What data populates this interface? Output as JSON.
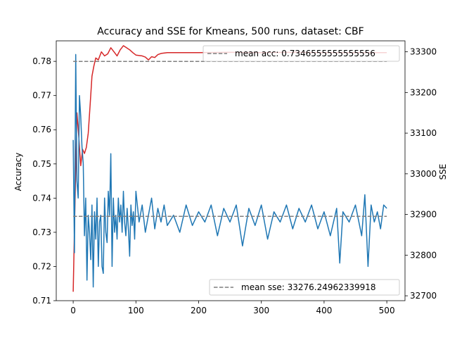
{
  "chart_data": {
    "type": "line",
    "title": "Accuracy and SSE for Kmeans, 500 runs, dataset: CBF",
    "xlabel": "",
    "ylabel_left": "Accuracy",
    "ylabel_right": "SSE",
    "xlim": [
      -27,
      529
    ],
    "ylim_left": [
      0.71,
      0.786
    ],
    "ylim_right": [
      32688,
      33327
    ],
    "x_ticks": [
      0,
      100,
      200,
      300,
      400,
      500
    ],
    "y_ticks_left": [
      0.71,
      0.72,
      0.73,
      0.74,
      0.75,
      0.76,
      0.77,
      0.78
    ],
    "y_ticks_right": [
      32700,
      32800,
      32900,
      33000,
      33100,
      33200,
      33300
    ],
    "grid": false,
    "series": [
      {
        "axis": "right",
        "color": "#d62728",
        "points": [
          [
            0,
            32710
          ],
          [
            3,
            32940
          ],
          [
            6,
            33150
          ],
          [
            9,
            33090
          ],
          [
            12,
            33020
          ],
          [
            15,
            33060
          ],
          [
            18,
            33050
          ],
          [
            21,
            33065
          ],
          [
            24,
            33100
          ],
          [
            27,
            33170
          ],
          [
            30,
            33240
          ],
          [
            33,
            33265
          ],
          [
            36,
            33285
          ],
          [
            40,
            33280
          ],
          [
            45,
            33300
          ],
          [
            50,
            33290
          ],
          [
            55,
            33295
          ],
          [
            60,
            33310
          ],
          [
            65,
            33300
          ],
          [
            70,
            33290
          ],
          [
            75,
            33305
          ],
          [
            80,
            33315
          ],
          [
            85,
            33310
          ],
          [
            90,
            33305
          ],
          [
            95,
            33298
          ],
          [
            100,
            33292
          ],
          [
            110,
            33290
          ],
          [
            115,
            33287
          ],
          [
            120,
            33280
          ],
          [
            125,
            33288
          ],
          [
            130,
            33286
          ],
          [
            135,
            33293
          ],
          [
            140,
            33296
          ],
          [
            150,
            33298
          ],
          [
            200,
            33298
          ],
          [
            250,
            33299
          ],
          [
            300,
            33298
          ],
          [
            350,
            33299
          ],
          [
            400,
            33298
          ],
          [
            450,
            33298
          ],
          [
            500,
            33298
          ]
        ]
      },
      {
        "axis": "left",
        "color": "#1f77b4",
        "points": [
          [
            0,
            0.757
          ],
          [
            2,
            0.724
          ],
          [
            4,
            0.782
          ],
          [
            6,
            0.745
          ],
          [
            8,
            0.74
          ],
          [
            10,
            0.77
          ],
          [
            12,
            0.764
          ],
          [
            14,
            0.755
          ],
          [
            16,
            0.75
          ],
          [
            18,
            0.729
          ],
          [
            20,
            0.74
          ],
          [
            22,
            0.716
          ],
          [
            24,
            0.735
          ],
          [
            26,
            0.73
          ],
          [
            28,
            0.722
          ],
          [
            30,
            0.738
          ],
          [
            32,
            0.714
          ],
          [
            34,
            0.736
          ],
          [
            36,
            0.728
          ],
          [
            38,
            0.74
          ],
          [
            40,
            0.72
          ],
          [
            42,
            0.733
          ],
          [
            44,
            0.735
          ],
          [
            46,
            0.72
          ],
          [
            48,
            0.718
          ],
          [
            50,
            0.74
          ],
          [
            52,
            0.73
          ],
          [
            54,
            0.727
          ],
          [
            56,
            0.742
          ],
          [
            58,
            0.735
          ],
          [
            60,
            0.753
          ],
          [
            62,
            0.72
          ],
          [
            64,
            0.74
          ],
          [
            66,
            0.73
          ],
          [
            68,
            0.735
          ],
          [
            70,
            0.728
          ],
          [
            72,
            0.74
          ],
          [
            74,
            0.733
          ],
          [
            76,
            0.738
          ],
          [
            78,
            0.73
          ],
          [
            80,
            0.742
          ],
          [
            82,
            0.733
          ],
          [
            84,
            0.729
          ],
          [
            86,
            0.737
          ],
          [
            88,
            0.731
          ],
          [
            90,
            0.723
          ],
          [
            92,
            0.738
          ],
          [
            94,
            0.732
          ],
          [
            96,
            0.736
          ],
          [
            98,
            0.728
          ],
          [
            100,
            0.742
          ],
          [
            105,
            0.733
          ],
          [
            110,
            0.738
          ],
          [
            115,
            0.73
          ],
          [
            120,
            0.735
          ],
          [
            125,
            0.74
          ],
          [
            130,
            0.731
          ],
          [
            135,
            0.737
          ],
          [
            140,
            0.733
          ],
          [
            145,
            0.738
          ],
          [
            150,
            0.732
          ],
          [
            160,
            0.735
          ],
          [
            170,
            0.73
          ],
          [
            180,
            0.738
          ],
          [
            190,
            0.732
          ],
          [
            200,
            0.736
          ],
          [
            210,
            0.733
          ],
          [
            220,
            0.738
          ],
          [
            230,
            0.729
          ],
          [
            240,
            0.737
          ],
          [
            250,
            0.733
          ],
          [
            260,
            0.738
          ],
          [
            270,
            0.726
          ],
          [
            280,
            0.737
          ],
          [
            290,
            0.732
          ],
          [
            300,
            0.738
          ],
          [
            310,
            0.728
          ],
          [
            320,
            0.736
          ],
          [
            330,
            0.733
          ],
          [
            340,
            0.738
          ],
          [
            350,
            0.731
          ],
          [
            360,
            0.737
          ],
          [
            370,
            0.733
          ],
          [
            380,
            0.738
          ],
          [
            390,
            0.731
          ],
          [
            400,
            0.736
          ],
          [
            410,
            0.729
          ],
          [
            420,
            0.737
          ],
          [
            425,
            0.721
          ],
          [
            430,
            0.736
          ],
          [
            440,
            0.733
          ],
          [
            450,
            0.738
          ],
          [
            460,
            0.729
          ],
          [
            465,
            0.741
          ],
          [
            470,
            0.72
          ],
          [
            475,
            0.738
          ],
          [
            480,
            0.733
          ],
          [
            485,
            0.736
          ],
          [
            490,
            0.731
          ],
          [
            495,
            0.738
          ],
          [
            500,
            0.737
          ]
        ]
      }
    ],
    "ref_lines": [
      {
        "axis": "left",
        "value": 0.7346555555555556,
        "color": "#7f7f7f",
        "style": "dashed"
      },
      {
        "axis": "right",
        "value": 33276.24962339918,
        "color": "#7f7f7f",
        "style": "dashed"
      }
    ],
    "legends": [
      {
        "label": "mean acc: 0.7346555555555556",
        "placement": "top-right"
      },
      {
        "label": "mean sse: 33276.24962339918",
        "placement": "bottom-right"
      }
    ]
  }
}
